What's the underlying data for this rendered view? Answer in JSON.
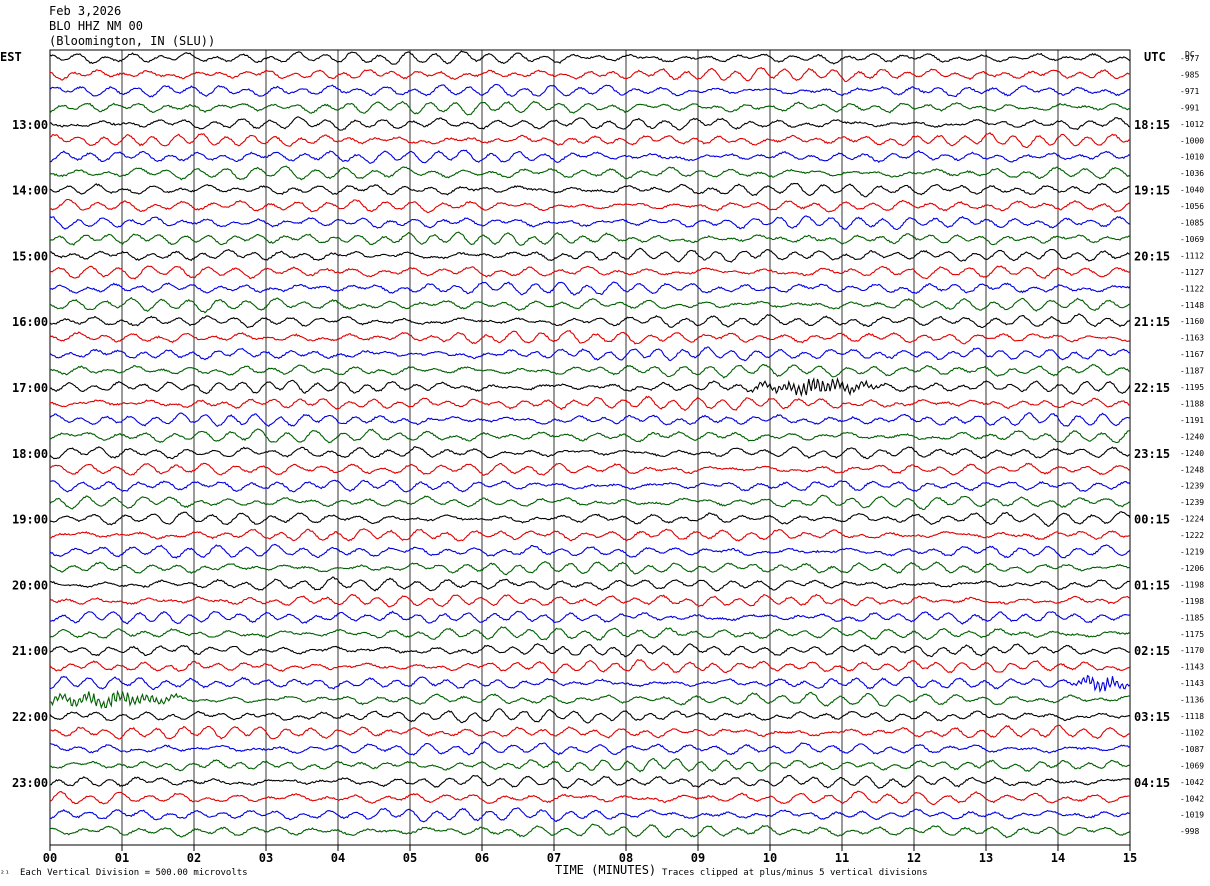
{
  "header": {
    "date": "Feb 3,2026",
    "station": "BLO HHZ NM 00",
    "location": "(Bloomington, IN (SLU))",
    "left_tz": "EST",
    "right_tz": "UTC",
    "dc_label": "DC"
  },
  "footer": {
    "scale_note": "Each Vertical Division =  500.00 microvolts",
    "xlabel": "TIME (MINUTES)",
    "clip_note": "Traces clipped at plus/minus 5 vertical divisions",
    "corner_mark": "²¹"
  },
  "chart_data": {
    "type": "line",
    "title": "",
    "xlabel": "TIME (MINUTES)",
    "xlim": [
      0,
      15
    ],
    "x_ticks": [
      "00",
      "01",
      "02",
      "03",
      "04",
      "05",
      "06",
      "07",
      "08",
      "09",
      "10",
      "11",
      "12",
      "13",
      "14",
      "15"
    ],
    "grid": "vertical lines every minute",
    "trace_colors": [
      "#000000",
      "#e00000",
      "#0000e0",
      "#006000"
    ],
    "hour_labels_est": [
      "13:00",
      "14:00",
      "15:00",
      "16:00",
      "17:00",
      "18:00",
      "19:00",
      "20:00",
      "21:00",
      "22:00",
      "23:00"
    ],
    "hour_labels_utc": [
      "18:15",
      "19:15",
      "20:15",
      "21:15",
      "22:15",
      "23:15",
      "00:15",
      "01:15",
      "02:15",
      "03:15",
      "04:15"
    ],
    "dc_offsets": [
      -977,
      -985,
      -971,
      -991,
      -1012,
      -1000,
      -1010,
      -1036,
      -1040,
      -1056,
      -1085,
      -1069,
      -1112,
      -1127,
      -1122,
      -1148,
      -1160,
      -1163,
      -1167,
      -1187,
      -1195,
      -1188,
      -1191,
      -1240,
      -1240,
      -1248,
      -1239,
      -1239,
      -1224,
      -1222,
      -1219,
      -1206,
      -1198,
      -1198,
      -1185,
      -1175,
      -1170,
      -1143,
      -1143,
      -1136,
      -1118,
      -1102,
      -1087,
      -1069,
      -1042,
      -1042,
      -1019,
      -998
    ],
    "events": [
      {
        "trace": 20,
        "start_min": 9.6,
        "end_min": 12.0,
        "peak_min": 10.6
      },
      {
        "trace": 39,
        "start_min": 0.0,
        "end_min": 2.7,
        "peak_min": 0.8
      },
      {
        "trace": 38,
        "start_min": 13.9,
        "end_min": 15.0,
        "peak_min": 14.6
      }
    ]
  }
}
